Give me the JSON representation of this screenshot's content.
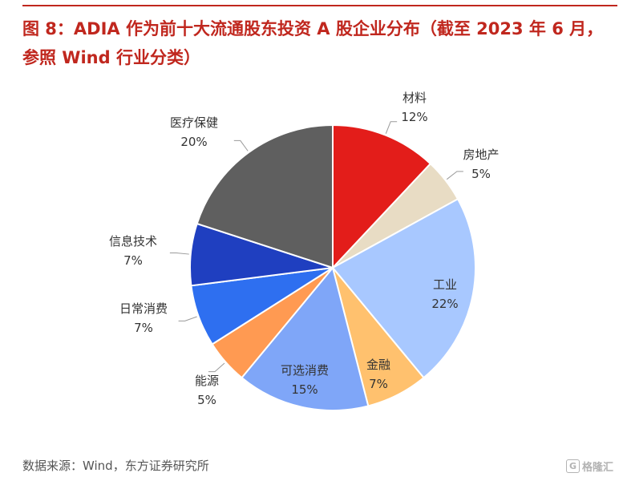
{
  "header": {
    "title": "图 8：ADIA 作为前十大流通股东投资 A 股企业分布（截至 2023 年 6 月，参照 Wind 行业分类）"
  },
  "footer": {
    "source": "数据来源：Wind，东方证券研究所"
  },
  "watermark": {
    "badge": "G",
    "text": "格隆汇"
  },
  "chart_data": {
    "type": "pie",
    "start": "12 o'clock, clockwise",
    "slices": [
      {
        "label": "材料",
        "value": 12,
        "display": "12%",
        "color": "#e31d1a"
      },
      {
        "label": "房地产",
        "value": 5,
        "display": "5%",
        "color": "#e8dcc4"
      },
      {
        "label": "工业",
        "value": 22,
        "display": "22%",
        "color": "#a8c8ff"
      },
      {
        "label": "金融",
        "value": 7,
        "display": "7%",
        "color": "#ffc16e"
      },
      {
        "label": "可选消费",
        "value": 15,
        "display": "15%",
        "color": "#7fa6f8"
      },
      {
        "label": "能源",
        "value": 5,
        "display": "5%",
        "color": "#ff9a52"
      },
      {
        "label": "日常消费",
        "value": 7,
        "display": "7%",
        "color": "#2e6ff0"
      },
      {
        "label": "信息技术",
        "value": 7,
        "display": "7%",
        "color": "#1f3fc0"
      },
      {
        "label": "医疗保健",
        "value": 20,
        "display": "20%",
        "color": "#5f5f5f"
      }
    ]
  }
}
